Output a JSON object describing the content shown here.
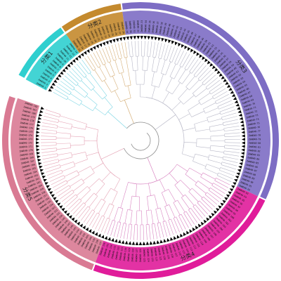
{
  "tree": {
    "leaf_prefix": "ZmWD40-",
    "groups": [
      {
        "id": "g1",
        "label": "分类1",
        "color": "#2FCFCF",
        "branch_color": "#7FD6E4",
        "leaves": 14
      },
      {
        "id": "g2",
        "label": "分类2",
        "color": "#C48A2E",
        "branch_color": "#D6B07A",
        "leaves": 14
      },
      {
        "id": "g3",
        "label": "分类3",
        "color": "#7D6DC4",
        "branch_color": "#B9B9C8",
        "leaves": 64
      },
      {
        "id": "g4",
        "label": "分类4",
        "color": "#E01C9A",
        "branch_color": "#D986C2",
        "leaves": 44
      },
      {
        "id": "g5",
        "label": "分类5",
        "color": "#D97A93",
        "branch_color": "#E6A6B7",
        "leaves": 46
      }
    ],
    "center_color": "#8C8C8C",
    "marker_color": "#000000"
  }
}
